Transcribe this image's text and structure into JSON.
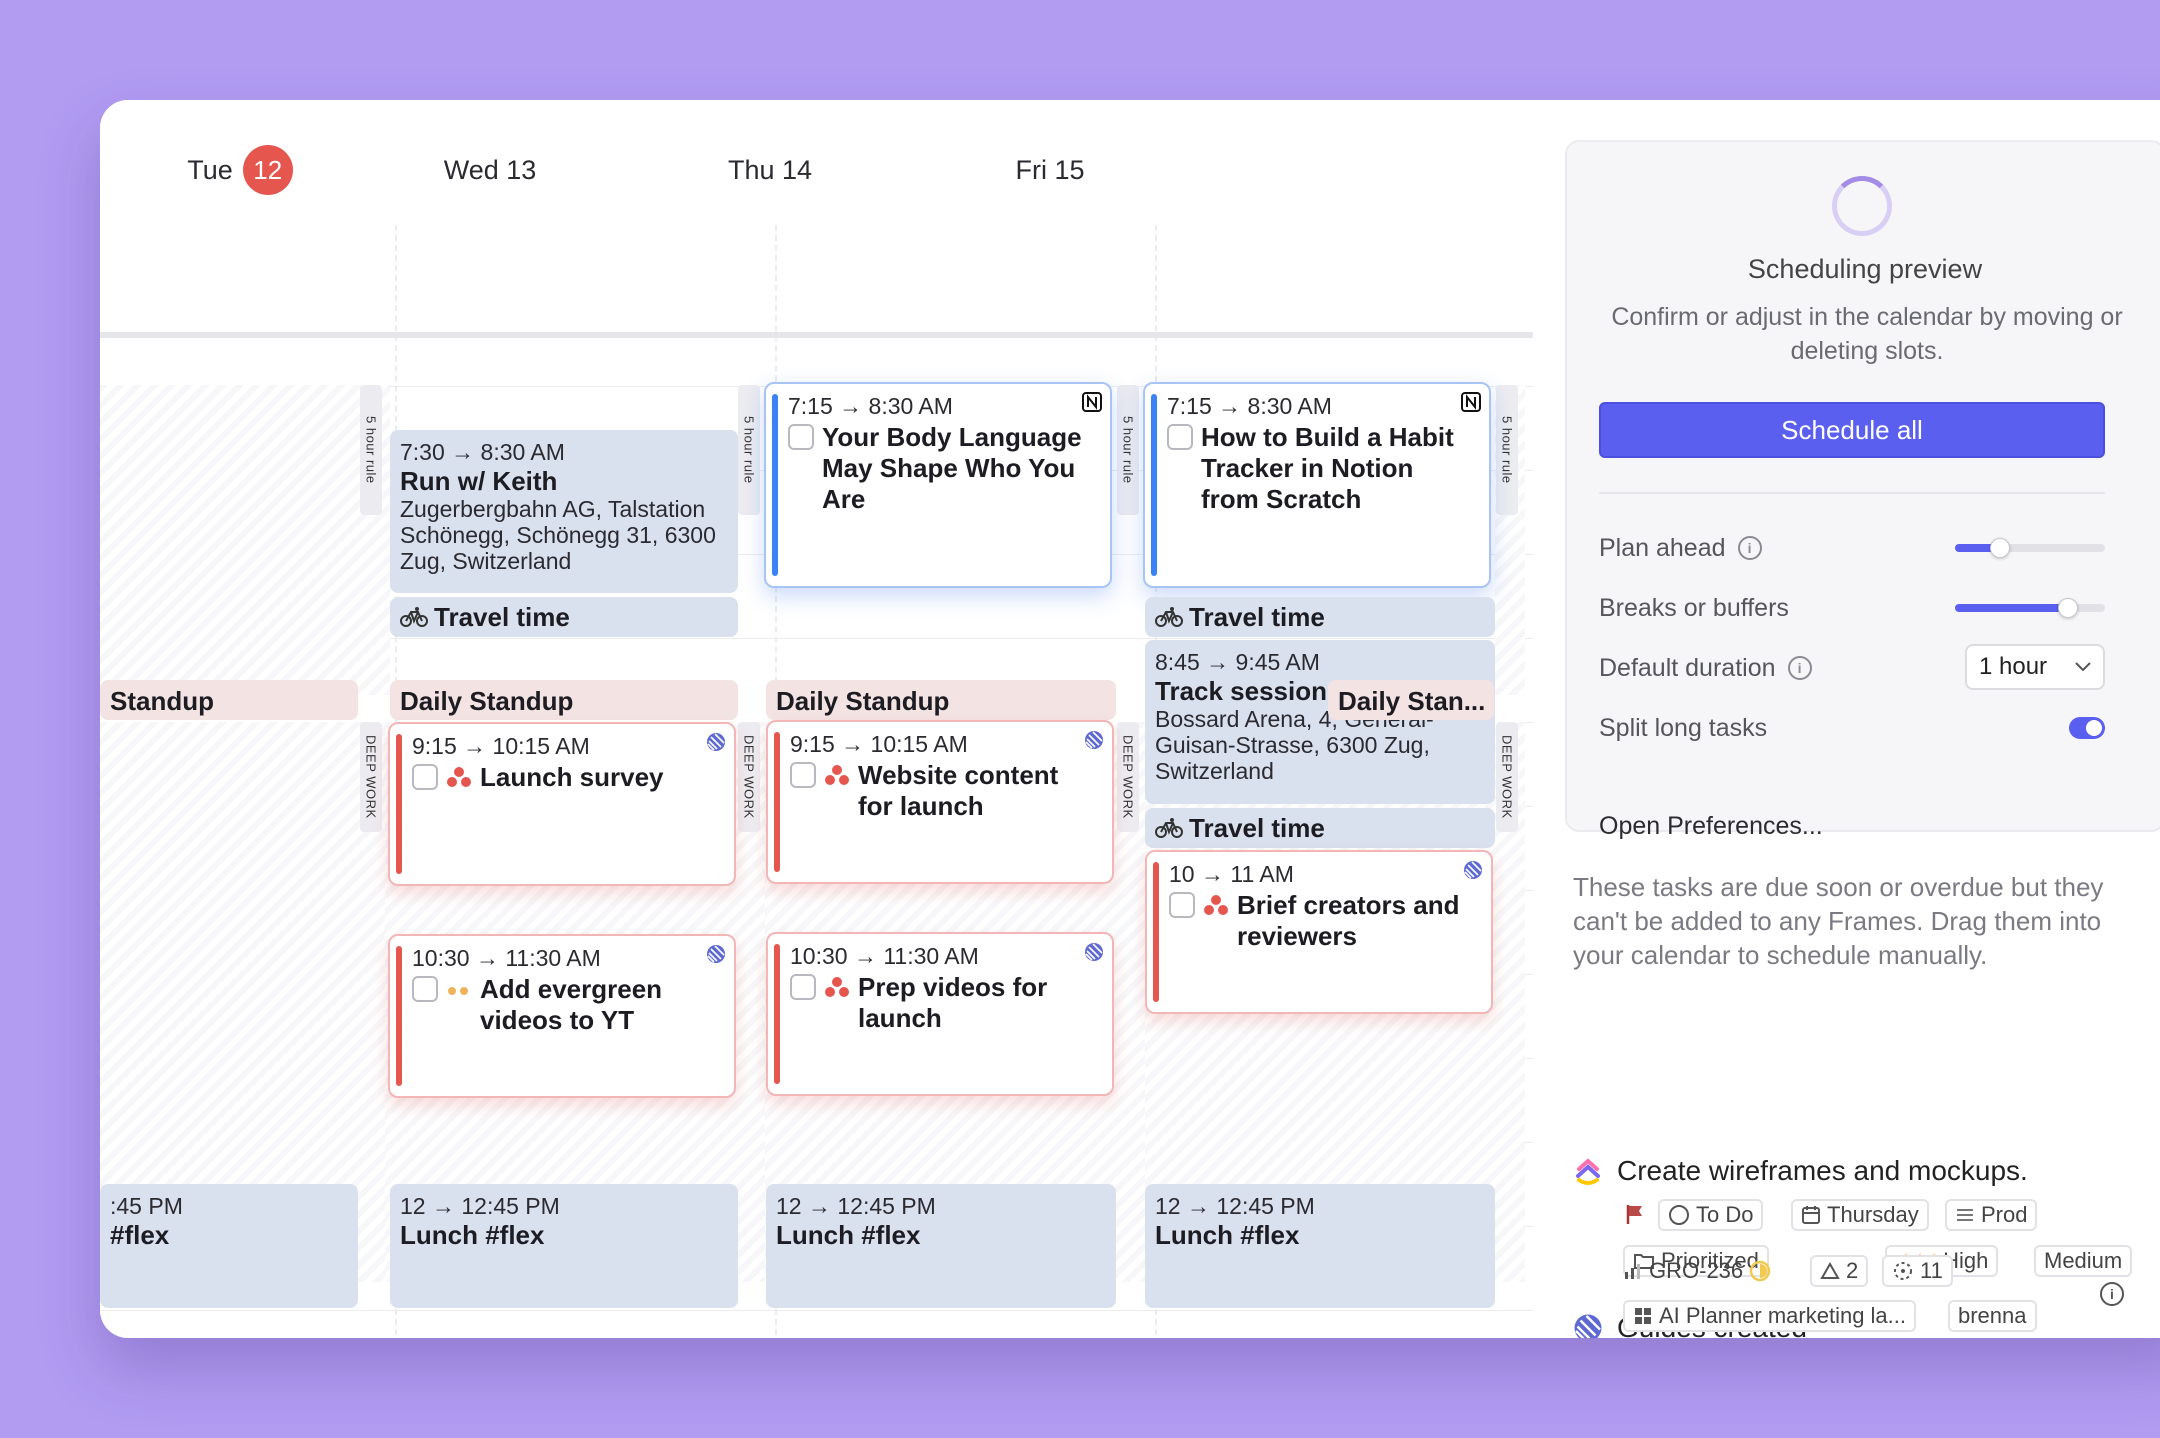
{
  "days": [
    {
      "label": "Tue",
      "badge": "12"
    },
    {
      "label": "Wed 13"
    },
    {
      "label": "Thu 14"
    },
    {
      "label": "Fri 15"
    }
  ],
  "frames": {
    "five_hour_rule": "5 hour rule",
    "deep_work": "DEEP WORK"
  },
  "events": {
    "run": {
      "time": "7:30 → 8:30 AM",
      "title": "Run w/ Keith",
      "location": "Zugerbergbahn AG, Talstation Schönegg, Schönegg 31, 6300 Zug, Switzerland"
    },
    "travel_label": "Travel time",
    "standup_tue": "Standup",
    "standup": "Daily Standup",
    "standup_short": "Daily Stan...",
    "track": {
      "time": "8:45 → 9:45 AM",
      "title": "Track session",
      "location": "Bossard Arena, 4, General-Guisan-Strasse, 6300 Zug, Switzerland"
    },
    "lunch_tue": {
      "time": ":45 PM",
      "title": "#flex"
    },
    "lunch": {
      "time": "12 → 12:45 PM",
      "title": "Lunch #flex"
    }
  },
  "tasks": {
    "body_language": {
      "time": "7:15 → 8:30 AM",
      "title": "Your Body Language May Shape Who You Are",
      "source_icon": "notion-icon"
    },
    "habit_tracker": {
      "time": "7:15 → 8:30 AM",
      "title": "How to Build a Habit Tracker in Notion from Scratch",
      "source_icon": "notion-icon"
    },
    "launch_survey": {
      "time": "9:15 → 10:15 AM",
      "title": "Launch survey",
      "source_icon": "linear-icon"
    },
    "website_content": {
      "time": "9:15 → 10:15 AM",
      "title": "Website content for launch",
      "source_icon": "linear-icon"
    },
    "evergreen": {
      "time": "10:30 → 11:30 AM",
      "title": "Add evergreen videos to YT",
      "source_icon": "linear-icon"
    },
    "prep_videos": {
      "time": "10:30 → 11:30 AM",
      "title": "Prep videos for launch",
      "source_icon": "linear-icon"
    },
    "brief_creators": {
      "time": "10 → 11 AM",
      "title": "Brief creators and reviewers",
      "source_icon": "linear-icon"
    }
  },
  "panel": {
    "title": "Scheduling preview",
    "subtitle": "Confirm or adjust in the calendar by moving or deleting slots.",
    "schedule_all": "Schedule all",
    "plan_ahead": {
      "label": "Plan ahead",
      "level": 0.3
    },
    "breaks": {
      "label": "Breaks or buffers",
      "level": 0.75
    },
    "default_duration": {
      "label": "Default duration",
      "value": "1 hour"
    },
    "split_long": {
      "label": "Split long tasks",
      "on": true
    },
    "open_prefs": "Open Preferences...",
    "due_note": "These tasks are due soon or overdue but they can't be added to any Frames. Drag them into your calendar to schedule manually.",
    "accent": "#5b5fef"
  },
  "unscheduled": [
    {
      "title": "Create wireframes and mockups.",
      "icon": "clickup-icon",
      "status": "To Do",
      "due": "Thursday",
      "list": "Prod",
      "folder": "Prioritized",
      "priority": "High",
      "effort": "Medium"
    },
    {
      "title": "Guides created",
      "icon": "linear-icon",
      "id": "GRO-236",
      "estimate": "2",
      "cycle": "11",
      "project": "AI Planner marketing la...",
      "assignee": "brenna"
    }
  ]
}
